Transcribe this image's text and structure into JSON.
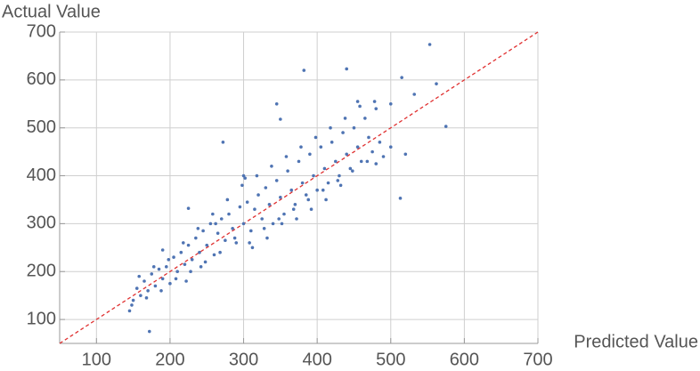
{
  "chart_data": {
    "type": "scatter",
    "x_label": "Predicted Value",
    "y_label": "Actual Value",
    "xlim": [
      50,
      700
    ],
    "ylim": [
      50,
      700
    ],
    "xticks": [
      100,
      200,
      300,
      400,
      500,
      600,
      700
    ],
    "yticks": [
      100,
      200,
      300,
      400,
      500,
      600,
      700
    ],
    "grid": true,
    "identity_line": true,
    "identity_color": "#e03030",
    "color": "#4f74b3",
    "x": [
      145,
      150,
      155,
      160,
      165,
      170,
      175,
      180,
      185,
      190,
      195,
      200,
      205,
      210,
      215,
      220,
      225,
      230,
      235,
      240,
      245,
      250,
      255,
      260,
      265,
      270,
      275,
      280,
      285,
      290,
      295,
      300,
      305,
      310,
      315,
      320,
      325,
      330,
      335,
      340,
      345,
      350,
      355,
      360,
      365,
      370,
      375,
      380,
      385,
      390,
      395,
      400,
      405,
      410,
      415,
      420,
      425,
      430,
      435,
      440,
      445,
      450,
      455,
      460,
      465,
      470,
      475,
      480,
      485,
      490,
      148,
      158,
      168,
      178,
      188,
      198,
      208,
      218,
      228,
      238,
      248,
      258,
      268,
      278,
      288,
      298,
      308,
      318,
      328,
      338,
      348,
      358,
      368,
      378,
      388,
      398,
      408,
      418,
      428,
      438,
      448,
      458,
      468,
      478,
      302,
      312,
      262,
      242,
      222,
      332,
      352,
      372,
      392,
      412,
      432,
      553,
      440,
      515,
      575,
      562,
      272,
      513,
      172,
      345,
      382,
      500,
      532,
      350,
      500,
      520,
      225,
      190,
      300,
      480,
      455
    ],
    "values": [
      118,
      140,
      165,
      150,
      180,
      160,
      195,
      170,
      205,
      185,
      210,
      175,
      230,
      200,
      240,
      215,
      255,
      225,
      270,
      240,
      285,
      255,
      300,
      235,
      280,
      310,
      265,
      320,
      290,
      260,
      335,
      300,
      345,
      285,
      330,
      360,
      310,
      375,
      340,
      300,
      390,
      355,
      320,
      410,
      370,
      340,
      430,
      385,
      360,
      445,
      400,
      370,
      460,
      415,
      385,
      470,
      430,
      400,
      490,
      445,
      415,
      500,
      460,
      430,
      520,
      480,
      450,
      540,
      470,
      440,
      130,
      190,
      145,
      210,
      160,
      225,
      185,
      260,
      200,
      290,
      220,
      320,
      240,
      350,
      270,
      380,
      260,
      400,
      290,
      420,
      310,
      440,
      330,
      460,
      350,
      480,
      370,
      500,
      390,
      520,
      410,
      545,
      430,
      555,
      395,
      250,
      300,
      210,
      180,
      270,
      300,
      310,
      330,
      350,
      380,
      674,
      623,
      605,
      503,
      592,
      470,
      353,
      75,
      550,
      620,
      460,
      570,
      518,
      550,
      445,
      332,
      245,
      400,
      425,
      555
    ]
  }
}
